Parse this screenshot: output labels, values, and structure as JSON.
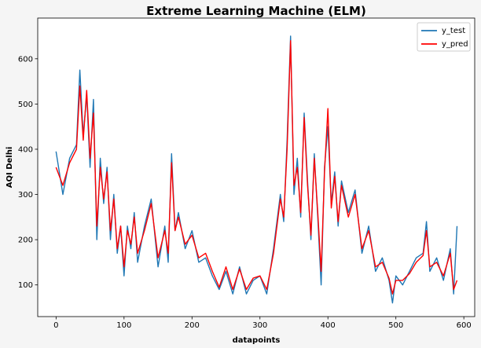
{
  "colors": {
    "y_test": "#1f77b4",
    "y_pred": "#ff0000",
    "background": "#f5f5f5",
    "plot_bg": "#ffffff"
  },
  "chart_data": {
    "type": "line",
    "title": "Extreme Learning Machine (ELM)",
    "xlabel": "datapoints",
    "ylabel": "AQI Delhi",
    "xlim": [
      -27,
      616
    ],
    "ylim": [
      30,
      690
    ],
    "x_ticks": [
      0,
      100,
      200,
      300,
      400,
      500,
      600
    ],
    "y_ticks": [
      100,
      200,
      300,
      400,
      500,
      600
    ],
    "grid": false,
    "legend_placement": "top-right",
    "series": [
      {
        "name": "y_test",
        "color": "#1f77b4",
        "x": [
          0,
          10,
          20,
          30,
          35,
          40,
          45,
          50,
          55,
          60,
          65,
          70,
          75,
          80,
          85,
          90,
          95,
          100,
          105,
          110,
          115,
          120,
          130,
          140,
          150,
          160,
          165,
          170,
          175,
          180,
          190,
          200,
          210,
          220,
          230,
          240,
          250,
          260,
          270,
          280,
          290,
          300,
          310,
          320,
          330,
          335,
          340,
          345,
          350,
          355,
          360,
          365,
          370,
          375,
          380,
          385,
          390,
          395,
          400,
          405,
          410,
          415,
          420,
          430,
          440,
          450,
          460,
          470,
          480,
          490,
          495,
          500,
          510,
          520,
          530,
          540,
          545,
          550,
          560,
          570,
          580,
          585,
          590
        ],
        "values": [
          395,
          300,
          380,
          410,
          575,
          430,
          520,
          360,
          510,
          200,
          380,
          280,
          360,
          200,
          300,
          170,
          230,
          120,
          230,
          180,
          260,
          150,
          230,
          290,
          140,
          230,
          150,
          390,
          220,
          260,
          180,
          220,
          150,
          160,
          120,
          90,
          130,
          80,
          140,
          80,
          110,
          120,
          80,
          180,
          300,
          240,
          420,
          650,
          300,
          380,
          250,
          480,
          330,
          200,
          390,
          250,
          100,
          360,
          450,
          280,
          350,
          230,
          330,
          260,
          310,
          170,
          230,
          130,
          160,
          110,
          60,
          120,
          100,
          130,
          160,
          170,
          240,
          130,
          160,
          110,
          180,
          80,
          230
        ]
      },
      {
        "name": "y_pred",
        "color": "#ff0000",
        "x": [
          0,
          10,
          20,
          30,
          35,
          40,
          45,
          50,
          55,
          60,
          65,
          70,
          75,
          80,
          85,
          90,
          95,
          100,
          105,
          110,
          115,
          120,
          130,
          140,
          150,
          160,
          165,
          170,
          175,
          180,
          190,
          200,
          210,
          220,
          230,
          240,
          250,
          260,
          270,
          280,
          290,
          300,
          310,
          320,
          330,
          335,
          340,
          345,
          350,
          355,
          360,
          365,
          370,
          375,
          380,
          385,
          390,
          395,
          400,
          405,
          410,
          415,
          420,
          430,
          440,
          450,
          460,
          470,
          480,
          490,
          495,
          500,
          510,
          520,
          530,
          540,
          545,
          550,
          560,
          570,
          580,
          585,
          590
        ],
        "values": [
          360,
          320,
          370,
          400,
          540,
          420,
          530,
          380,
          480,
          230,
          360,
          290,
          350,
          220,
          290,
          180,
          230,
          140,
          220,
          190,
          250,
          170,
          220,
          280,
          160,
          220,
          170,
          370,
          220,
          250,
          190,
          210,
          160,
          170,
          130,
          95,
          140,
          90,
          135,
          90,
          115,
          120,
          90,
          170,
          290,
          250,
          400,
          640,
          320,
          360,
          260,
          470,
          320,
          210,
          380,
          260,
          130,
          350,
          490,
          270,
          340,
          240,
          320,
          250,
          300,
          180,
          220,
          140,
          150,
          115,
          80,
          110,
          110,
          125,
          150,
          165,
          220,
          140,
          150,
          120,
          170,
          90,
          110
        ]
      }
    ]
  }
}
